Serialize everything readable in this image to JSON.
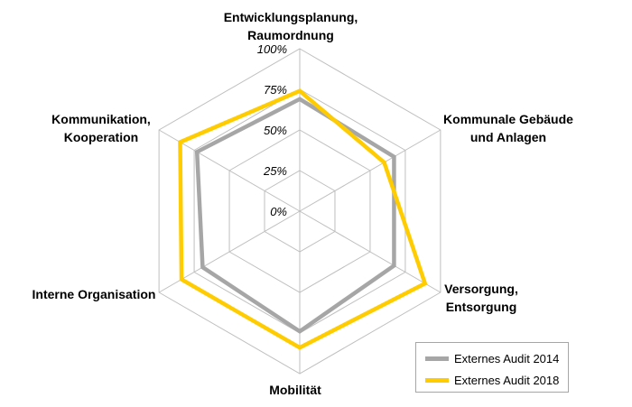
{
  "chart_data": {
    "type": "radar",
    "categories": [
      [
        "Entwicklungsplanung,",
        "Raumordnung"
      ],
      [
        "Kommunale Gebäude",
        "und Anlagen"
      ],
      [
        "Versorgung,",
        "Entsorgung"
      ],
      [
        "Mobilität"
      ],
      [
        "Interne Organisation"
      ],
      [
        "Kommunikation,",
        "Kooperation"
      ]
    ],
    "ticks": [
      "0%",
      "25%",
      "50%",
      "75%",
      "100%"
    ],
    "tick_values": [
      0,
      25,
      50,
      75,
      100
    ],
    "range": [
      0,
      100
    ],
    "grid": true,
    "legend_position": "bottom-right",
    "series": [
      {
        "name": "Externes Audit 2014",
        "color": "#a6a6a6",
        "values": [
          69,
          67,
          67,
          74,
          69,
          73
        ]
      },
      {
        "name": "Externes Audit 2018",
        "color": "#ffcc00",
        "values": [
          74,
          60,
          89,
          84,
          84,
          85
        ]
      }
    ]
  }
}
